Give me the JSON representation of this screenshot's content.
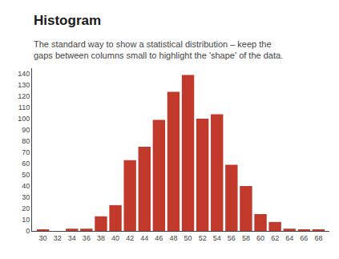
{
  "chart_data": {
    "type": "bar",
    "title": "Histogram",
    "subtitle": "The standard way to show a statistical distribution – keep the\ngaps between columns small to highlight the 'shape' of the data.",
    "x": [
      30,
      32,
      34,
      36,
      38,
      40,
      42,
      44,
      46,
      48,
      50,
      52,
      54,
      56,
      58,
      60,
      62,
      64,
      66,
      68
    ],
    "values": [
      1,
      0,
      2,
      2,
      13,
      23,
      63,
      75,
      99,
      124,
      139,
      100,
      104,
      59,
      40,
      15,
      8,
      2,
      1,
      1
    ],
    "color": "#c0392b",
    "xlim": [
      28.5,
      69.5
    ],
    "xticks": [
      30,
      32,
      34,
      36,
      38,
      40,
      42,
      44,
      46,
      48,
      50,
      52,
      54,
      56,
      58,
      60,
      62,
      64,
      66,
      68
    ],
    "ylim": [
      0,
      145
    ],
    "yticks": [
      0,
      10,
      20,
      30,
      40,
      50,
      60,
      70,
      80,
      90,
      100,
      110,
      120,
      130,
      140
    ],
    "grid": false
  }
}
